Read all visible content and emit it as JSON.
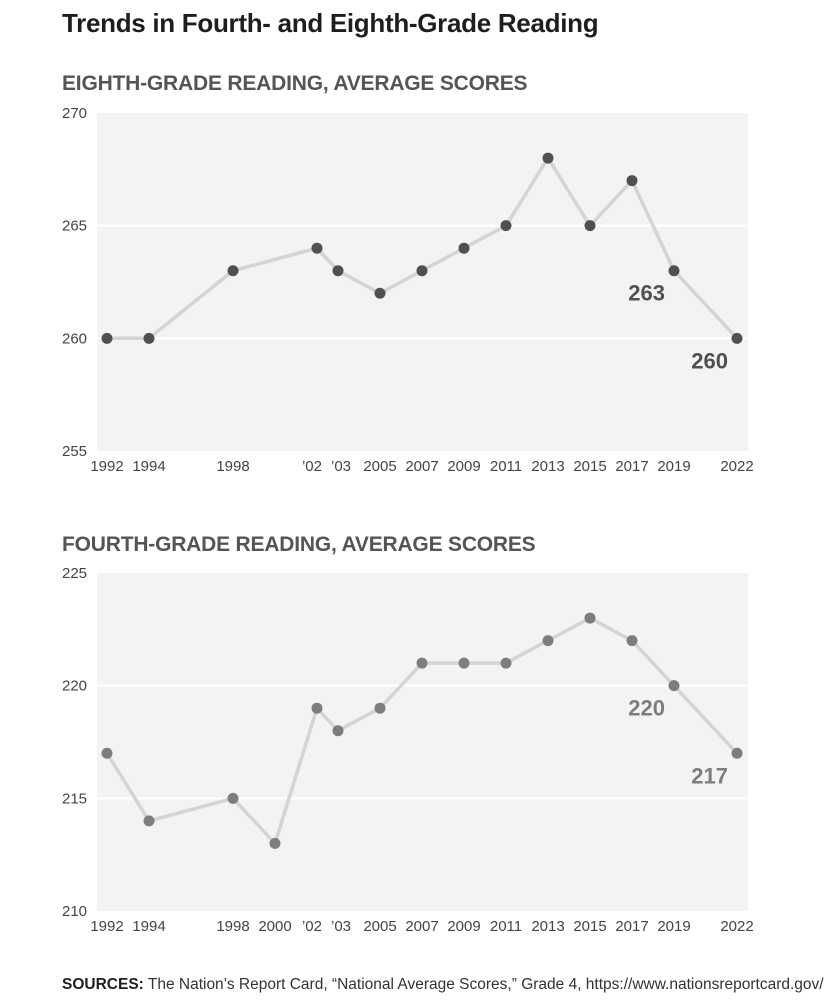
{
  "title": "Trends in Fourth- and Eighth-Grade Reading",
  "footer": {
    "label": "SOURCES:",
    "text": "The Nation’s Report Card, “National Average Scores,” Grade 4, https://www.nationsreportcard.gov/"
  },
  "colors": {
    "plot_bg": "#f3f3f3",
    "gridline": "#ffffff",
    "line": "#d4d4d4",
    "eighth_marker": "#505050",
    "fourth_marker": "#7d7d7d"
  },
  "chart_data": [
    {
      "type": "line",
      "title": "EIGHTH-GRADE READING, AVERAGE SCORES",
      "xlabel": "",
      "ylabel": "",
      "ylim": [
        255,
        270
      ],
      "yticks": [
        255,
        260,
        265,
        270
      ],
      "grid": true,
      "x_tick_labels": [
        "1992",
        "1994",
        "1998",
        "’02",
        "’03",
        "2005",
        "2007",
        "2009",
        "2011",
        "2013",
        "2015",
        "2017",
        "2019",
        "2022"
      ],
      "x": [
        1992,
        1994,
        1998,
        2002,
        2003,
        2005,
        2007,
        2009,
        2011,
        2013,
        2015,
        2017,
        2019,
        2022
      ],
      "values": [
        260,
        260,
        263,
        264,
        263,
        262,
        263,
        264,
        265,
        268,
        265,
        267,
        263,
        260
      ],
      "annotations": [
        {
          "x": 2019,
          "value": 263,
          "text": "263"
        },
        {
          "x": 2022,
          "value": 260,
          "text": "260"
        }
      ]
    },
    {
      "type": "line",
      "title": "FOURTH-GRADE READING, AVERAGE SCORES",
      "xlabel": "",
      "ylabel": "",
      "ylim": [
        210,
        225
      ],
      "yticks": [
        210,
        215,
        220,
        225
      ],
      "grid": true,
      "x_tick_labels": [
        "1992",
        "1994",
        "1998",
        "2000",
        "’02",
        "’03",
        "2005",
        "2007",
        "2009",
        "2011",
        "2013",
        "2015",
        "2017",
        "2019",
        "2022"
      ],
      "x": [
        1992,
        1994,
        1998,
        2000,
        2002,
        2003,
        2005,
        2007,
        2009,
        2011,
        2013,
        2015,
        2017,
        2019,
        2022
      ],
      "values": [
        217,
        214,
        215,
        213,
        219,
        218,
        219,
        221,
        221,
        221,
        222,
        223,
        222,
        220,
        217
      ],
      "annotations": [
        {
          "x": 2019,
          "value": 220,
          "text": "220"
        },
        {
          "x": 2022,
          "value": 217,
          "text": "217"
        }
      ]
    }
  ]
}
